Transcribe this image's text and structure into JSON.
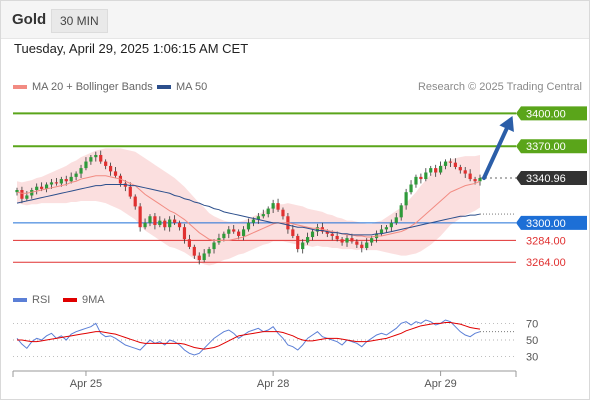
{
  "header": {
    "instrument": "Gold",
    "timeframe": "30 MIN"
  },
  "timestamp": "Tuesday, April 29, 2025 1:06:15 AM CET",
  "legend": {
    "items": [
      {
        "label": "MA 20 + Bollinger Bands",
        "color": "#f28b82"
      },
      {
        "label": "MA 50",
        "color": "#2c4f8c"
      }
    ],
    "attribution": "Research © 2025 Trading Central"
  },
  "rsi_legend": {
    "items": [
      {
        "label": "RSI",
        "color": "#5b7fd6"
      },
      {
        "label": "9MA",
        "color": "#e00000"
      }
    ]
  },
  "chart_data": [
    {
      "type": "candlestick",
      "title": "Gold 30 MIN",
      "ylim": [
        3245,
        3415
      ],
      "x_ticks": [
        "Apr 25",
        "Apr 28",
        "Apr 29"
      ],
      "current_price": 3340.96,
      "levels": [
        {
          "value": 3400.0,
          "label": "3400.00",
          "kind": "resistance",
          "color": "#5aa51a"
        },
        {
          "value": 3370.0,
          "label": "3370.00",
          "kind": "resistance",
          "color": "#5aa51a"
        },
        {
          "value": 3340.96,
          "label": "3340.96",
          "kind": "last",
          "color": "#333333"
        },
        {
          "value": 3300.0,
          "label": "3300.00",
          "kind": "pivot",
          "color": "#1d6fd6"
        },
        {
          "value": 3284.0,
          "label": "3284.00",
          "kind": "support",
          "color": "#e03030"
        },
        {
          "value": 3264.0,
          "label": "3264.00",
          "kind": "support",
          "color": "#e03030"
        }
      ],
      "forecast_arrow": {
        "from": 3340.96,
        "to": 3400.0
      },
      "close": [
        3330,
        3322,
        3325,
        3330,
        3333,
        3331,
        3335,
        3337,
        3336,
        3340,
        3338,
        3342,
        3345,
        3350,
        3356,
        3360,
        3362,
        3356,
        3352,
        3347,
        3343,
        3336,
        3333,
        3324,
        3315,
        3296,
        3300,
        3306,
        3298,
        3302,
        3296,
        3303,
        3300,
        3296,
        3285,
        3278,
        3270,
        3266,
        3272,
        3276,
        3282,
        3286,
        3290,
        3294,
        3292,
        3288,
        3294,
        3300,
        3303,
        3306,
        3308,
        3313,
        3318,
        3312,
        3306,
        3294,
        3288,
        3276,
        3282,
        3287,
        3292,
        3296,
        3292,
        3290,
        3288,
        3285,
        3282,
        3286,
        3283,
        3280,
        3277,
        3282,
        3286,
        3290,
        3294,
        3296,
        3300,
        3305,
        3316,
        3328,
        3335,
        3342,
        3340,
        3346,
        3350,
        3346,
        3352,
        3356,
        3355,
        3351,
        3348,
        3345,
        3340,
        3338,
        3341
      ],
      "ma20": [
        3328,
        3327,
        3327,
        3328,
        3329,
        3330,
        3331,
        3332,
        3333,
        3334,
        3335,
        3337,
        3338,
        3340,
        3341,
        3342,
        3343,
        3343,
        3343,
        3342,
        3341,
        3340,
        3338,
        3336,
        3334,
        3330,
        3326,
        3323,
        3320,
        3317,
        3314,
        3311,
        3309,
        3306,
        3303,
        3299,
        3295,
        3291,
        3288,
        3285,
        3284,
        3284,
        3284,
        3284,
        3285,
        3286,
        3287,
        3289,
        3291,
        3293,
        3295,
        3297,
        3299,
        3300,
        3300,
        3300,
        3299,
        3298,
        3297,
        3296,
        3295,
        3295,
        3294,
        3293,
        3292,
        3291,
        3290,
        3289,
        3289,
        3288,
        3288,
        3287,
        3287,
        3288,
        3288,
        3289,
        3290,
        3291,
        3292,
        3294,
        3297,
        3300,
        3304,
        3308,
        3312,
        3316,
        3320,
        3324,
        3328,
        3330,
        3332,
        3334,
        3335,
        3336,
        3338
      ],
      "ma50": [
        3318,
        3319,
        3320,
        3321,
        3322,
        3323,
        3324,
        3325,
        3326,
        3327,
        3328,
        3329,
        3330,
        3331,
        3332,
        3333,
        3334,
        3334,
        3335,
        3335,
        3335,
        3335,
        3335,
        3334,
        3334,
        3333,
        3332,
        3331,
        3330,
        3329,
        3328,
        3327,
        3325,
        3324,
        3322,
        3321,
        3319,
        3318,
        3316,
        3315,
        3313,
        3312,
        3310,
        3309,
        3308,
        3307,
        3306,
        3305,
        3304,
        3303,
        3302,
        3301,
        3300,
        3300,
        3299,
        3298,
        3297,
        3296,
        3296,
        3295,
        3294,
        3293,
        3293,
        3292,
        3291,
        3291,
        3290,
        3290,
        3289,
        3289,
        3289,
        3289,
        3289,
        3290,
        3290,
        3291,
        3292,
        3293,
        3294,
        3295,
        3296,
        3297,
        3298,
        3299,
        3300,
        3301,
        3302,
        3303,
        3304,
        3305,
        3306,
        3306,
        3307,
        3307,
        3308
      ],
      "band_width": [
        10,
        10,
        11,
        11,
        12,
        12,
        13,
        14,
        15,
        16,
        17,
        18,
        19,
        20,
        21,
        22,
        23,
        24,
        25,
        26,
        27,
        28,
        29,
        30,
        31,
        32,
        33,
        33,
        33,
        33,
        33,
        33,
        32,
        31,
        30,
        29,
        28,
        27,
        26,
        24,
        22,
        20,
        18,
        17,
        16,
        15,
        15,
        15,
        15,
        15,
        15,
        16,
        16,
        17,
        17,
        18,
        18,
        18,
        18,
        17,
        17,
        16,
        16,
        15,
        15,
        14,
        14,
        13,
        13,
        13,
        12,
        12,
        12,
        13,
        14,
        16,
        18,
        20,
        22,
        24,
        26,
        28,
        30,
        31,
        32,
        32,
        32,
        31,
        30,
        29,
        28,
        27,
        26,
        25,
        24
      ]
    },
    {
      "type": "line",
      "title": "RSI",
      "ylim": [
        20,
        80
      ],
      "y_ticks": [
        30,
        50,
        70
      ],
      "series": [
        {
          "name": "RSI",
          "color": "#5b7fd6",
          "values": [
            52,
            45,
            40,
            48,
            52,
            50,
            55,
            58,
            52,
            55,
            50,
            57,
            60,
            62,
            64,
            66,
            70,
            58,
            54,
            55,
            52,
            48,
            44,
            42,
            40,
            38,
            44,
            50,
            46,
            48,
            44,
            50,
            48,
            44,
            38,
            34,
            32,
            34,
            40,
            46,
            52,
            56,
            60,
            62,
            58,
            52,
            56,
            60,
            62,
            64,
            60,
            62,
            66,
            58,
            52,
            44,
            42,
            38,
            44,
            52,
            56,
            60,
            54,
            52,
            50,
            48,
            44,
            50,
            48,
            46,
            42,
            48,
            52,
            56,
            58,
            56,
            60,
            64,
            70,
            72,
            68,
            72,
            70,
            74,
            72,
            68,
            70,
            74,
            72,
            66,
            60,
            56,
            54,
            58,
            60
          ]
        },
        {
          "name": "9MA",
          "color": "#e00000",
          "values": [
            50,
            50,
            49,
            48,
            48,
            49,
            50,
            51,
            52,
            53,
            54,
            55,
            56,
            57,
            58,
            59,
            60,
            60,
            59,
            58,
            57,
            55,
            53,
            51,
            49,
            47,
            46,
            46,
            46,
            46,
            46,
            46,
            46,
            46,
            45,
            43,
            41,
            40,
            39,
            40,
            41,
            43,
            46,
            49,
            52,
            55,
            56,
            57,
            58,
            59,
            60,
            60,
            60,
            60,
            59,
            57,
            55,
            52,
            50,
            49,
            49,
            50,
            51,
            52,
            52,
            52,
            51,
            50,
            49,
            48,
            48,
            48,
            49,
            50,
            51,
            52,
            54,
            56,
            58,
            61,
            63,
            65,
            67,
            68,
            69,
            70,
            70,
            71,
            71,
            70,
            69,
            67,
            65,
            64,
            63
          ]
        }
      ]
    }
  ]
}
